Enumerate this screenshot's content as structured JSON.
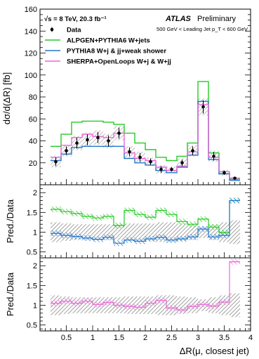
{
  "chart_data": {
    "type": "line",
    "xlabel": "ΔR(μ, closest jet)",
    "x_tick_labels": [
      "0",
      "0.5",
      "1",
      "1.5",
      "2",
      "2.5",
      "3",
      "3.5",
      "4"
    ],
    "xlim": [
      0,
      4
    ],
    "bin_edges": [
      0,
      0.2,
      0.4,
      0.6,
      0.8,
      1.0,
      1.2,
      1.4,
      1.6,
      1.8,
      2.0,
      2.2,
      2.4,
      2.6,
      2.8,
      3.0,
      3.2,
      3.4,
      3.6,
      3.8,
      4.0
    ],
    "top_panel": {
      "ylabel": "dσ/d(ΔR) [fb]",
      "ylim": [
        0,
        160
      ],
      "y_tick_labels": [
        "20",
        "40",
        "60",
        "80",
        "100",
        "120",
        "140",
        "160"
      ],
      "atlas_label": "ATLAS",
      "atlas_status": "Preliminary",
      "energy_lumi": "√s = 8 TeV, 20.3 fb⁻¹",
      "selection": "500 GeV < Leading Jet p_T < 600 GeV",
      "data": {
        "name": "Data",
        "x": [
          0.3,
          0.5,
          0.7,
          0.9,
          1.1,
          1.3,
          1.5,
          1.7,
          1.9,
          2.1,
          2.3,
          2.5,
          2.7,
          2.9,
          3.1,
          3.3,
          3.5,
          3.7
        ],
        "y": [
          21,
          31,
          38,
          41,
          43,
          40,
          47,
          30,
          25,
          21,
          14,
          14,
          20,
          31,
          71,
          26,
          11,
          6
        ],
        "err": [
          4,
          4,
          5,
          5,
          5,
          5,
          5,
          4,
          4,
          3,
          3,
          2,
          3,
          4,
          6,
          4,
          2,
          1
        ]
      },
      "series": [
        {
          "name": "ALPGEN+PYTHIA6 W+jets",
          "color": "#22cc22",
          "values": [
            35,
            46,
            57,
            58,
            58,
            57,
            55,
            47,
            38,
            32,
            25,
            22,
            26,
            38,
            94,
            29,
            10,
            5
          ]
        },
        {
          "name": "PYTHIA8 W+j & jj+weak shower",
          "color": "#2277cc",
          "values": [
            22,
            28,
            34,
            35,
            35,
            35,
            35,
            24,
            20,
            18,
            13,
            11,
            16,
            27,
            76,
            23,
            10,
            4
          ]
        },
        {
          "name": "SHERPA+OpenLoops W+j & W+jj",
          "color": "#ee66dd",
          "values": [
            25,
            36,
            43,
            46,
            44,
            43,
            47,
            29,
            24,
            22,
            16,
            13,
            17,
            30,
            73,
            25,
            12,
            6
          ]
        }
      ]
    },
    "ratio_panels": [
      {
        "ylabel": "Pred./Data",
        "ylim": [
          0.35,
          2.2
        ],
        "y_tick_labels": [
          "0.5",
          "1",
          "1.5",
          "2"
        ],
        "data_uncertainty": [
          0.25,
          0.22,
          0.2,
          0.2,
          0.2,
          0.2,
          0.2,
          0.22,
          0.22,
          0.22,
          0.25,
          0.25,
          0.22,
          0.2,
          0.15,
          0.2,
          0.25,
          0.3
        ],
        "series": [
          {
            "name": "ALPGEN+PYTHIA6 W+jets",
            "color": "#22cc22",
            "values": [
              1.58,
              1.52,
              1.47,
              1.4,
              1.36,
              1.4,
              1.17,
              1.55,
              1.45,
              1.38,
              1.55,
              1.45,
              1.27,
              1.2,
              1.33,
              1.13,
              0.99,
              1.8
            ]
          },
          {
            "name": "PYTHIA8 W+j & jj+weak shower",
            "color": "#2277cc",
            "values": [
              0.97,
              0.92,
              0.89,
              0.85,
              0.82,
              0.87,
              0.72,
              0.8,
              0.77,
              0.83,
              0.87,
              0.8,
              0.83,
              0.88,
              1.08,
              0.88,
              0.92,
              1.8
            ]
          }
        ]
      },
      {
        "ylabel": "Pred./Data",
        "ylim": [
          0.35,
          2.2
        ],
        "y_tick_labels": [
          "0.5",
          "1",
          "1.5",
          "2"
        ],
        "data_uncertainty": [
          0.25,
          0.22,
          0.2,
          0.2,
          0.2,
          0.2,
          0.2,
          0.22,
          0.22,
          0.22,
          0.25,
          0.25,
          0.22,
          0.2,
          0.15,
          0.2,
          0.25,
          0.3
        ],
        "series": [
          {
            "name": "SHERPA+OpenLoops W+j & W+jj",
            "color": "#ee66dd",
            "values": [
              1.05,
              1.1,
              1.05,
              1.1,
              1.02,
              1.07,
              1.0,
              0.97,
              0.95,
              1.05,
              1.12,
              0.93,
              0.88,
              0.97,
              1.02,
              0.98,
              1.08,
              2.1
            ]
          }
        ]
      }
    ],
    "grid": false,
    "legend_position": "top-left"
  }
}
